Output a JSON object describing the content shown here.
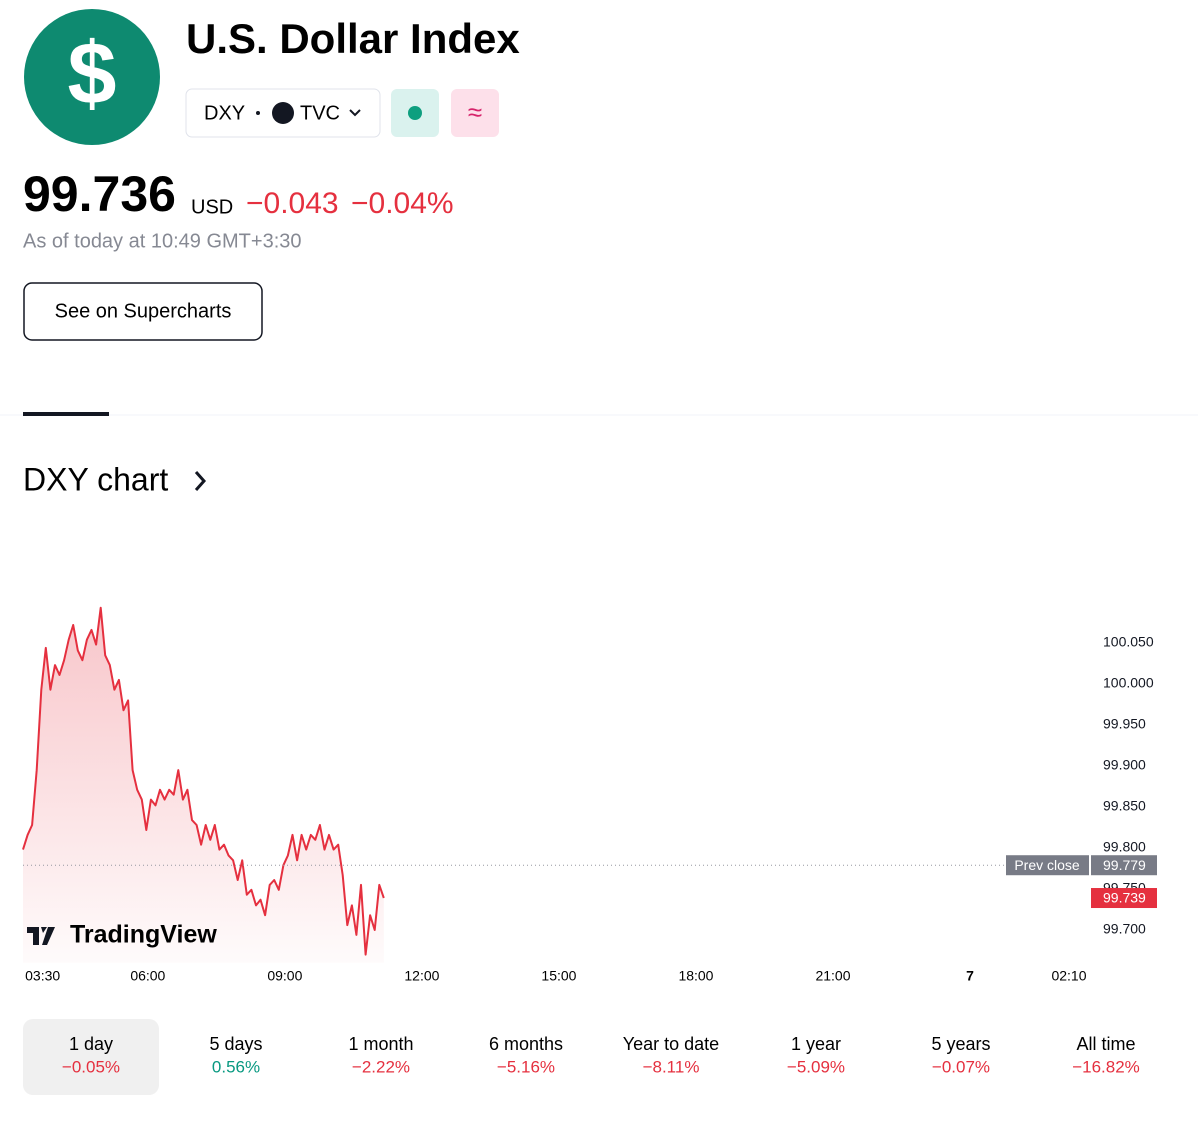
{
  "header": {
    "icon": "$",
    "title": "U.S. Dollar Index",
    "symbol": "DXY",
    "exchange": "TVC",
    "badge": "≈"
  },
  "quote": {
    "price": "99.736",
    "currency": "USD",
    "change": "−0.043",
    "change_pct": "−0.04%",
    "as_of": "As of today at 10:49 GMT+3:30"
  },
  "button": "See on Supercharts",
  "section_title": "DXY chart",
  "chart": {
    "type": "line",
    "brand": "TradingView",
    "color": "#e5303f",
    "x": [
      -14,
      -8,
      -2,
      4,
      10,
      16,
      22,
      28,
      34,
      40,
      46,
      52,
      58,
      64,
      70,
      76,
      82,
      88,
      94,
      100,
      106,
      112,
      118,
      124,
      130,
      136,
      142,
      148,
      154,
      160,
      166,
      172,
      178,
      184,
      190,
      196,
      202,
      208,
      214,
      220,
      226,
      232,
      238,
      244,
      250,
      256,
      262,
      268,
      274,
      280,
      286,
      292,
      298,
      304,
      310,
      316,
      322,
      328,
      334,
      340,
      346,
      352,
      358,
      364,
      370,
      376,
      382,
      388,
      394,
      400,
      406,
      412,
      418,
      424,
      430,
      436,
      442,
      448,
      454,
      460
    ],
    "values": [
      99.798,
      99.816,
      99.828,
      99.895,
      99.993,
      100.044,
      99.993,
      100.023,
      100.011,
      100.029,
      100.054,
      100.072,
      100.041,
      100.029,
      100.054,
      100.066,
      100.048,
      100.093,
      100.035,
      100.023,
      99.993,
      100.005,
      99.968,
      99.98,
      99.895,
      99.871,
      99.859,
      99.822,
      99.859,
      99.852,
      99.871,
      99.859,
      99.871,
      99.865,
      99.895,
      99.859,
      99.871,
      99.834,
      99.828,
      99.804,
      99.828,
      99.81,
      99.828,
      99.798,
      99.804,
      99.791,
      99.785,
      99.761,
      99.785,
      99.743,
      99.749,
      99.73,
      99.737,
      99.718,
      99.755,
      99.761,
      99.749,
      99.779,
      99.791,
      99.816,
      99.785,
      99.816,
      99.798,
      99.816,
      99.81,
      99.828,
      99.798,
      99.816,
      99.798,
      99.804,
      99.767,
      99.706,
      99.73,
      99.694,
      99.755,
      99.67,
      99.718,
      99.7,
      99.755,
      99.739
    ],
    "xlim": [
      -14,
      1360
    ],
    "xticks": [
      {
        "value": 0,
        "label": "03:30"
      },
      {
        "value": 150,
        "label": "06:00"
      },
      {
        "value": 330,
        "label": "09:00"
      },
      {
        "value": 510,
        "label": "12:00"
      },
      {
        "value": 690,
        "label": "15:00"
      },
      {
        "value": 870,
        "label": "18:00"
      },
      {
        "value": 1050,
        "label": "21:00"
      },
      {
        "value": 1230,
        "label": "7"
      },
      {
        "value": 1360,
        "label": "02:10"
      }
    ],
    "ylim": [
      99.66,
      100.11
    ],
    "yticks": [
      {
        "value": 99.7,
        "label": "99.700"
      },
      {
        "value": 99.75,
        "label": "99.750"
      },
      {
        "value": 99.8,
        "label": "99.800"
      },
      {
        "value": 99.85,
        "label": "99.850"
      },
      {
        "value": 99.9,
        "label": "99.900"
      },
      {
        "value": 99.95,
        "label": "99.950"
      },
      {
        "value": 100,
        "label": "100.000"
      },
      {
        "value": 100.05,
        "label": "100.050"
      }
    ],
    "prev_close": {
      "label": "Prev close",
      "value": 99.779,
      "value_label": "99.779"
    },
    "last": {
      "value": 99.739,
      "value_label": "99.739"
    }
  },
  "periods": [
    {
      "label": "1 day",
      "change": "−0.05%"
    },
    {
      "label": "5 days",
      "change": "0.56%"
    },
    {
      "label": "1 month",
      "change": "−2.22%"
    },
    {
      "label": "6 months",
      "change": "−5.16%"
    },
    {
      "label": "Year to date",
      "change": "−8.11%"
    },
    {
      "label": "1 year",
      "change": "−5.09%"
    },
    {
      "label": "5 years",
      "change": "−0.07%"
    },
    {
      "label": "All time",
      "change": "−16.82%"
    }
  ]
}
